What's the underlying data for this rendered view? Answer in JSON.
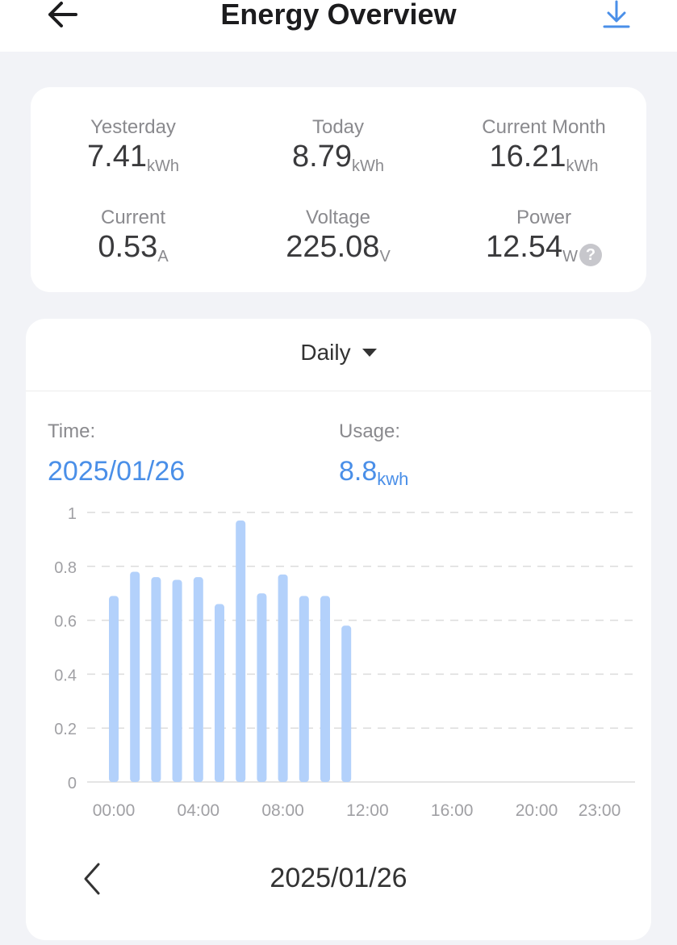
{
  "header": {
    "title": "Energy Overview",
    "back_icon": "arrow-left-icon",
    "download_icon": "download-icon"
  },
  "stats": [
    {
      "label": "Yesterday",
      "value": "7.41",
      "unit": "kWh"
    },
    {
      "label": "Today",
      "value": "8.79",
      "unit": "kWh"
    },
    {
      "label": "Current Month",
      "value": "16.21",
      "unit": "kWh"
    },
    {
      "label": "Current",
      "value": "0.53",
      "unit": "A"
    },
    {
      "label": "Voltage",
      "value": "225.08",
      "unit": "V"
    },
    {
      "label": "Power",
      "value": "12.54",
      "unit": "W",
      "help_icon": "?"
    }
  ],
  "chart_panel": {
    "period": "Daily",
    "time_label": "Time:",
    "time_value": "2025/01/26",
    "usage_label": "Usage:",
    "usage_value": "8.8",
    "usage_unit": "kwh",
    "nav_date": "2025/01/26"
  },
  "colors": {
    "accent": "#4a8fe8",
    "bar": "#b3d1fb",
    "background": "#f2f3f7"
  },
  "chart_data": {
    "type": "bar",
    "categories": [
      "00:00",
      "01:00",
      "02:00",
      "03:00",
      "04:00",
      "05:00",
      "06:00",
      "07:00",
      "08:00",
      "09:00",
      "10:00",
      "11:00",
      "12:00",
      "13:00",
      "14:00",
      "15:00",
      "16:00",
      "17:00",
      "18:00",
      "19:00",
      "20:00",
      "21:00",
      "22:00",
      "23:00"
    ],
    "values": [
      0.69,
      0.78,
      0.76,
      0.75,
      0.76,
      0.66,
      0.97,
      0.7,
      0.77,
      0.69,
      0.69,
      0.58,
      null,
      null,
      null,
      null,
      null,
      null,
      null,
      null,
      null,
      null,
      null,
      null
    ],
    "x_tick_labels": [
      "00:00",
      "04:00",
      "08:00",
      "12:00",
      "16:00",
      "20:00",
      "23:00"
    ],
    "y_ticks": [
      "0",
      "0.2",
      "0.4",
      "0.6",
      "0.8",
      "1"
    ],
    "ylim": [
      0,
      1
    ],
    "grid": true
  }
}
